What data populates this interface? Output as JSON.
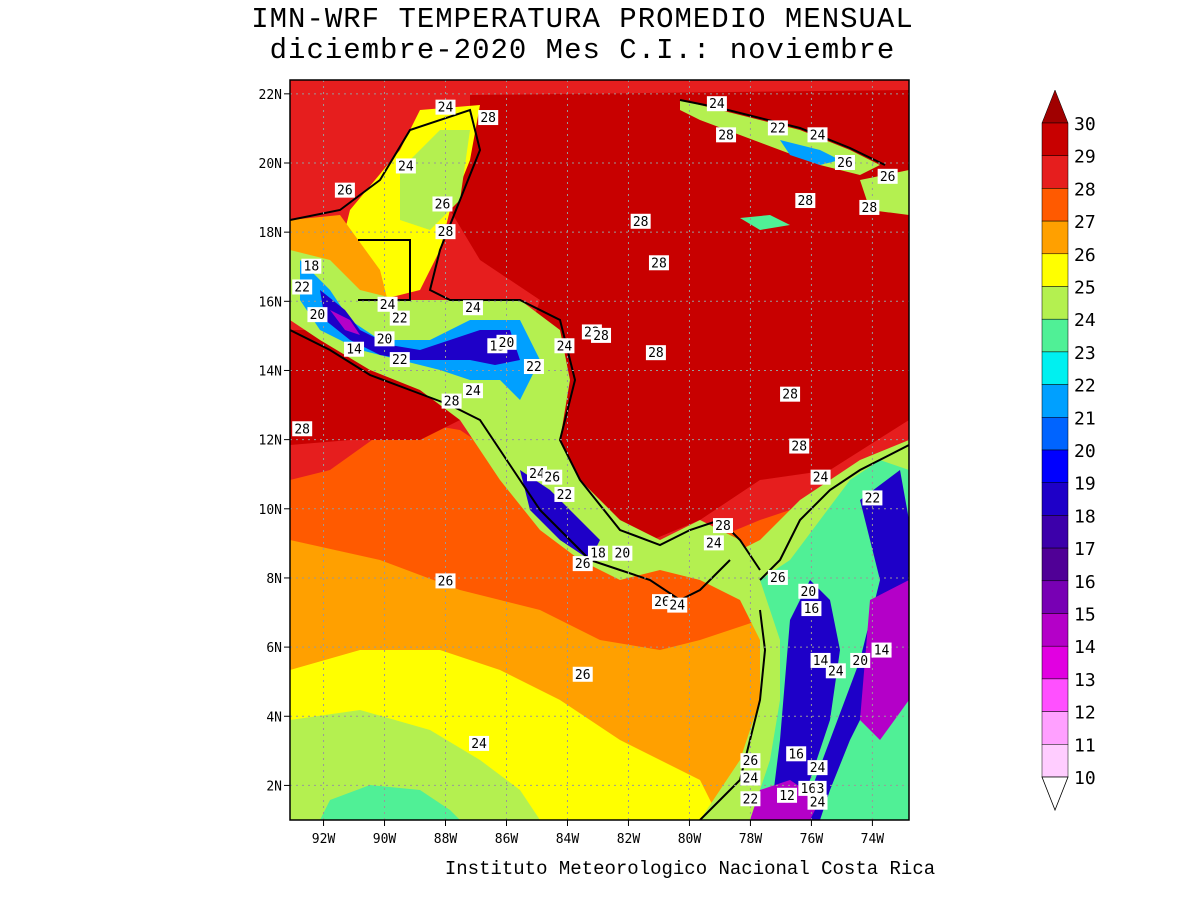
{
  "title": {
    "line1": "IMN-WRF  TEMPERATURA PROMEDIO MENSUAL",
    "line2": "diciembre-2020 Mes C.I.: noviembre"
  },
  "credit": "Instituto Meteorologico Nacional Costa Rica",
  "map": {
    "lon_range": [
      -93.1,
      -72.8
    ],
    "lat_range": [
      1.0,
      22.4
    ],
    "x_ticks": [
      "92W",
      "90W",
      "88W",
      "86W",
      "84W",
      "82W",
      "80W",
      "78W",
      "76W",
      "74W"
    ],
    "y_ticks": [
      "22N",
      "20N",
      "18N",
      "16N",
      "14N",
      "12N",
      "10N",
      "8N",
      "6N",
      "4N",
      "2N"
    ],
    "grid": true
  },
  "colorbar": {
    "levels": [
      "30",
      "29",
      "28",
      "27",
      "26",
      "25",
      "24",
      "23",
      "22",
      "21",
      "20",
      "19",
      "18",
      "17",
      "16",
      "15",
      "14",
      "13",
      "12",
      "11",
      "10"
    ],
    "colors": [
      "#a00000",
      "#c80000",
      "#e61e1e",
      "#ff5a00",
      "#ffa000",
      "#ffff00",
      "#b4f050",
      "#50f096",
      "#00f0f0",
      "#00a0ff",
      "#0064ff",
      "#0000ff",
      "#1e00c8",
      "#3c00aa",
      "#500096",
      "#7800b4",
      "#b400c8",
      "#e100e1",
      "#ff50ff",
      "#ffa0ff",
      "#ffcdff"
    ]
  },
  "contour_labels": [
    {
      "text": "24",
      "lon": -88.0,
      "lat": 21.6
    },
    {
      "text": "28",
      "lon": -86.6,
      "lat": 21.3
    },
    {
      "text": "24",
      "lon": -79.1,
      "lat": 21.7
    },
    {
      "text": "28",
      "lon": -78.8,
      "lat": 20.8
    },
    {
      "text": "22",
      "lon": -77.1,
      "lat": 21.0
    },
    {
      "text": "24",
      "lon": -75.8,
      "lat": 20.8
    },
    {
      "text": "26",
      "lon": -74.9,
      "lat": 20.0
    },
    {
      "text": "26",
      "lon": -73.5,
      "lat": 19.6
    },
    {
      "text": "24",
      "lon": -89.3,
      "lat": 19.9
    },
    {
      "text": "26",
      "lon": -91.3,
      "lat": 19.2
    },
    {
      "text": "26",
      "lon": -88.1,
      "lat": 18.8
    },
    {
      "text": "28",
      "lon": -88.0,
      "lat": 18.0
    },
    {
      "text": "28",
      "lon": -81.6,
      "lat": 18.3
    },
    {
      "text": "28",
      "lon": -76.2,
      "lat": 18.9
    },
    {
      "text": "28",
      "lon": -74.1,
      "lat": 18.7
    },
    {
      "text": "28",
      "lon": -81.0,
      "lat": 17.1
    },
    {
      "text": "18",
      "lon": -92.4,
      "lat": 17.0
    },
    {
      "text": "22",
      "lon": -92.7,
      "lat": 16.4
    },
    {
      "text": "24",
      "lon": -89.9,
      "lat": 15.9
    },
    {
      "text": "24",
      "lon": -87.1,
      "lat": 15.8
    },
    {
      "text": "22",
      "lon": -89.5,
      "lat": 15.5
    },
    {
      "text": "20",
      "lon": -92.2,
      "lat": 15.6
    },
    {
      "text": "22",
      "lon": -83.2,
      "lat": 15.1
    },
    {
      "text": "28",
      "lon": -82.9,
      "lat": 15.0
    },
    {
      "text": "20",
      "lon": -90.0,
      "lat": 14.9
    },
    {
      "text": "15",
      "lon": -86.3,
      "lat": 14.7
    },
    {
      "text": "20",
      "lon": -86.0,
      "lat": 14.8
    },
    {
      "text": "24",
      "lon": -84.1,
      "lat": 14.7
    },
    {
      "text": "28",
      "lon": -81.1,
      "lat": 14.5
    },
    {
      "text": "14",
      "lon": -91.0,
      "lat": 14.6
    },
    {
      "text": "22",
      "lon": -89.5,
      "lat": 14.3
    },
    {
      "text": "22",
      "lon": -85.1,
      "lat": 14.1
    },
    {
      "text": "24",
      "lon": -87.1,
      "lat": 13.4
    },
    {
      "text": "28",
      "lon": -87.8,
      "lat": 13.1
    },
    {
      "text": "28",
      "lon": -76.7,
      "lat": 13.3
    },
    {
      "text": "28",
      "lon": -92.7,
      "lat": 12.3
    },
    {
      "text": "28",
      "lon": -76.4,
      "lat": 11.8
    },
    {
      "text": "24",
      "lon": -85.0,
      "lat": 11.0
    },
    {
      "text": "26",
      "lon": -84.5,
      "lat": 10.9
    },
    {
      "text": "24",
      "lon": -75.7,
      "lat": 10.9
    },
    {
      "text": "22",
      "lon": -84.1,
      "lat": 10.4
    },
    {
      "text": "22",
      "lon": -74.0,
      "lat": 10.3
    },
    {
      "text": "28",
      "lon": -78.9,
      "lat": 9.5
    },
    {
      "text": "24",
      "lon": -79.2,
      "lat": 9.0
    },
    {
      "text": "18",
      "lon": -83.0,
      "lat": 8.7
    },
    {
      "text": "20",
      "lon": -82.2,
      "lat": 8.7
    },
    {
      "text": "26",
      "lon": -83.5,
      "lat": 8.4
    },
    {
      "text": "26",
      "lon": -88.0,
      "lat": 7.9
    },
    {
      "text": "26",
      "lon": -77.1,
      "lat": 8.0
    },
    {
      "text": "20",
      "lon": -76.1,
      "lat": 7.6
    },
    {
      "text": "26",
      "lon": -80.9,
      "lat": 7.3
    },
    {
      "text": "24",
      "lon": -80.4,
      "lat": 7.2
    },
    {
      "text": "16",
      "lon": -76.0,
      "lat": 7.1
    },
    {
      "text": "14",
      "lon": -73.7,
      "lat": 5.9
    },
    {
      "text": "14",
      "lon": -75.7,
      "lat": 5.6
    },
    {
      "text": "20",
      "lon": -74.4,
      "lat": 5.6
    },
    {
      "text": "24",
      "lon": -75.2,
      "lat": 5.3
    },
    {
      "text": "26",
      "lon": -83.5,
      "lat": 5.2
    },
    {
      "text": "24",
      "lon": -86.9,
      "lat": 3.2
    },
    {
      "text": "16",
      "lon": -76.5,
      "lat": 2.9
    },
    {
      "text": "26",
      "lon": -78.0,
      "lat": 2.7
    },
    {
      "text": "24",
      "lon": -75.8,
      "lat": 2.5
    },
    {
      "text": "24",
      "lon": -78.0,
      "lat": 2.2
    },
    {
      "text": "16",
      "lon": -76.1,
      "lat": 1.9
    },
    {
      "text": "3",
      "lon": -75.7,
      "lat": 1.9
    },
    {
      "text": "12",
      "lon": -76.8,
      "lat": 1.7
    },
    {
      "text": "22",
      "lon": -78.0,
      "lat": 1.6
    },
    {
      "text": "24",
      "lon": -75.8,
      "lat": 1.5
    }
  ]
}
